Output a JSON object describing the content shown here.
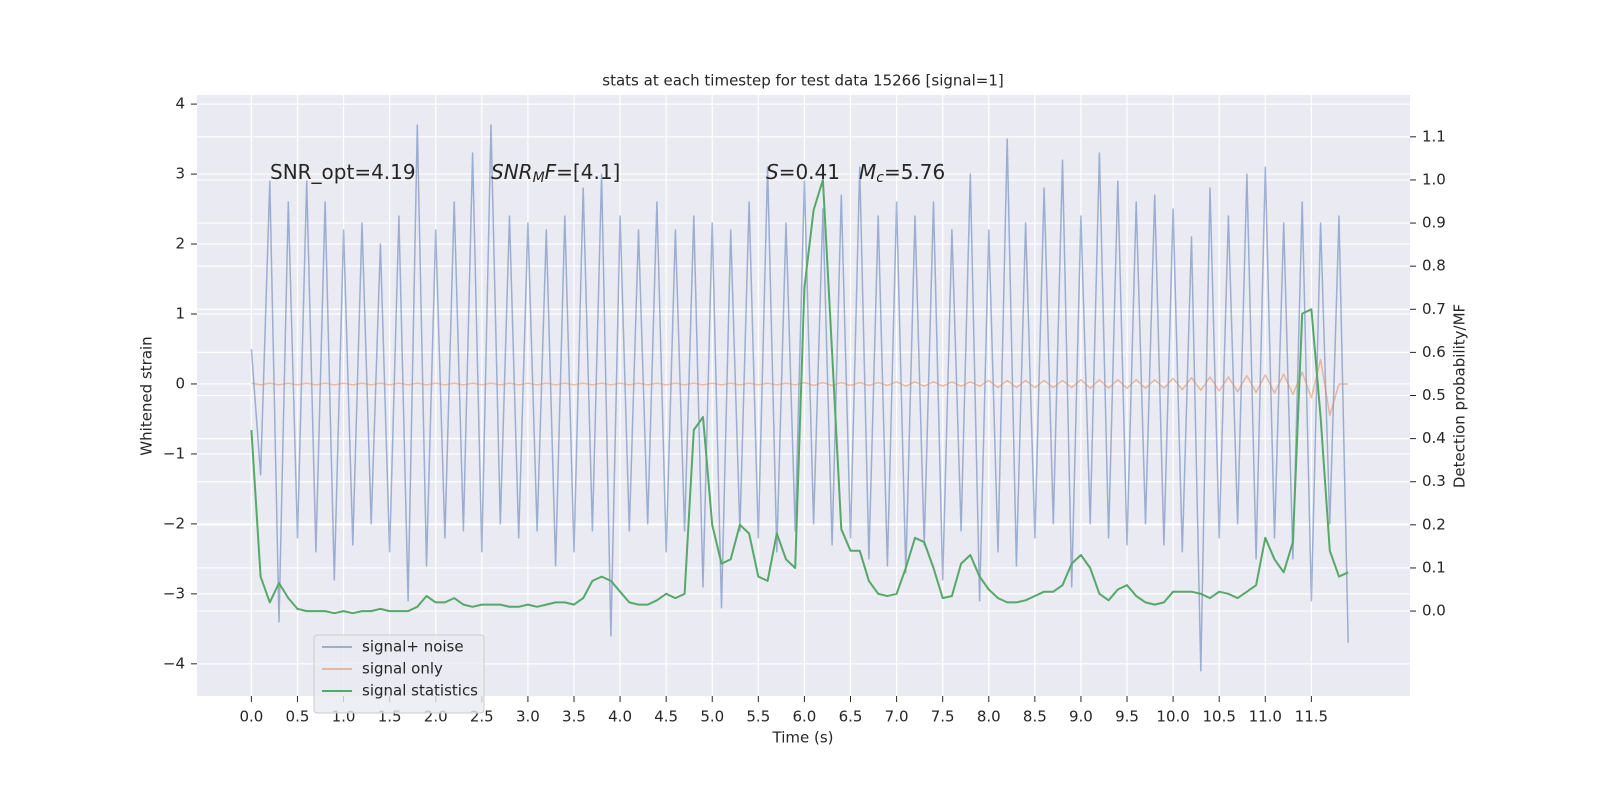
{
  "chart_data": {
    "type": "line",
    "title": "stats at each timestep for test data 15266 [signal=1]",
    "x_label": "Time (s)",
    "y_label": "Whitened strain",
    "y2_label": "Detection probability/MF",
    "x": [
      0.0,
      0.1,
      0.2,
      0.3,
      0.4,
      0.5,
      0.6,
      0.7,
      0.8,
      0.9,
      1.0,
      1.1,
      1.2,
      1.3,
      1.4,
      1.5,
      1.6,
      1.7,
      1.8,
      1.9,
      2.0,
      2.1,
      2.2,
      2.3,
      2.4,
      2.5,
      2.6,
      2.7,
      2.8,
      2.9,
      3.0,
      3.1,
      3.2,
      3.3,
      3.4,
      3.5,
      3.6,
      3.7,
      3.8,
      3.9,
      4.0,
      4.1,
      4.2,
      4.3,
      4.4,
      4.5,
      4.6,
      4.7,
      4.8,
      4.9,
      5.0,
      5.1,
      5.2,
      5.3,
      5.4,
      5.5,
      5.6,
      5.7,
      5.8,
      5.9,
      6.0,
      6.1,
      6.2,
      6.3,
      6.4,
      6.5,
      6.6,
      6.7,
      6.8,
      6.9,
      7.0,
      7.1,
      7.2,
      7.3,
      7.4,
      7.5,
      7.6,
      7.7,
      7.8,
      7.9,
      8.0,
      8.1,
      8.2,
      8.3,
      8.4,
      8.5,
      8.6,
      8.7,
      8.8,
      8.9,
      9.0,
      9.1,
      9.2,
      9.3,
      9.4,
      9.5,
      9.6,
      9.7,
      9.8,
      9.9,
      10.0,
      10.1,
      10.2,
      10.3,
      10.4,
      10.5,
      10.6,
      10.7,
      10.8,
      10.9,
      11.0,
      11.1,
      11.2,
      11.3,
      11.4,
      11.5,
      11.6,
      11.7,
      11.8,
      11.9
    ],
    "series": [
      {
        "name": "signal+ noise",
        "color": "#4c72b0",
        "opacity": 0.5,
        "axis": "y",
        "values": [
          0.5,
          -1.3,
          2.9,
          -3.4,
          2.6,
          -2.2,
          2.9,
          -2.4,
          2.6,
          -2.8,
          2.2,
          -2.3,
          2.3,
          -2.0,
          2.0,
          -2.4,
          2.4,
          -3.1,
          3.7,
          -2.6,
          2.2,
          -2.2,
          2.6,
          -2.1,
          3.3,
          -2.4,
          3.7,
          -2.0,
          2.4,
          -2.2,
          2.3,
          -2.1,
          2.2,
          -2.6,
          2.4,
          -2.4,
          2.8,
          -2.1,
          3.0,
          -3.6,
          2.4,
          -2.1,
          2.2,
          -2.0,
          2.6,
          -2.4,
          2.2,
          -2.1,
          2.4,
          -2.9,
          2.3,
          -3.2,
          2.2,
          -2.1,
          2.6,
          -2.2,
          3.1,
          -2.4,
          2.3,
          -2.1,
          2.9,
          -2.0,
          2.5,
          -2.3,
          2.7,
          -2.2,
          3.1,
          -2.5,
          2.4,
          -2.6,
          2.6,
          -2.7,
          2.4,
          -2.3,
          2.6,
          -2.8,
          2.2,
          -2.1,
          3.0,
          -3.1,
          2.2,
          -2.4,
          3.5,
          -2.6,
          2.3,
          -2.2,
          2.8,
          -2.0,
          3.2,
          -2.9,
          2.4,
          -2.0,
          3.3,
          -2.2,
          2.9,
          -2.3,
          2.6,
          -2.0,
          2.7,
          -2.3,
          2.5,
          -2.4,
          2.1,
          -4.1,
          2.8,
          -2.2,
          2.4,
          -2.0,
          3.0,
          -2.5,
          3.1,
          -2.2,
          2.3,
          -2.5,
          2.6,
          -3.1,
          2.3,
          -2.0,
          2.4,
          -3.7
        ]
      },
      {
        "name": "signal only",
        "color": "#dd8452",
        "opacity": 0.5,
        "axis": "y",
        "values": [
          0.01,
          -0.01,
          0.01,
          -0.01,
          0.01,
          -0.01,
          0.01,
          -0.01,
          0.01,
          -0.01,
          0.01,
          -0.01,
          0.01,
          -0.01,
          0.01,
          -0.01,
          0.01,
          -0.01,
          0.01,
          -0.01,
          0.01,
          -0.01,
          0.01,
          -0.01,
          0.01,
          -0.01,
          0.01,
          -0.01,
          0.01,
          -0.01,
          0.01,
          -0.01,
          0.01,
          -0.01,
          0.01,
          -0.01,
          0.01,
          -0.01,
          0.01,
          -0.01,
          0.01,
          -0.01,
          0.01,
          -0.01,
          0.01,
          -0.01,
          0.01,
          -0.01,
          0.01,
          -0.01,
          0.01,
          -0.01,
          0.01,
          -0.01,
          0.01,
          -0.01,
          0.01,
          -0.01,
          0.01,
          -0.01,
          0.02,
          -0.02,
          0.02,
          -0.02,
          0.02,
          -0.02,
          0.02,
          -0.02,
          0.02,
          -0.02,
          0.03,
          -0.03,
          0.03,
          -0.03,
          0.03,
          -0.03,
          0.03,
          -0.03,
          0.03,
          -0.03,
          0.05,
          -0.05,
          0.05,
          -0.05,
          0.05,
          -0.05,
          0.05,
          -0.05,
          0.05,
          -0.05,
          0.06,
          -0.06,
          0.06,
          -0.06,
          0.06,
          -0.06,
          0.06,
          -0.06,
          0.06,
          -0.06,
          0.08,
          -0.08,
          0.09,
          -0.09,
          0.1,
          -0.1,
          0.1,
          -0.11,
          0.12,
          -0.12,
          0.13,
          -0.13,
          0.14,
          -0.15,
          0.17,
          -0.2,
          0.35,
          -0.45,
          0.0,
          0.0
        ]
      },
      {
        "name": "signal statistics",
        "color": "#55a868",
        "opacity": 1,
        "axis": "y2",
        "values": [
          0.42,
          0.08,
          0.02,
          0.065,
          0.03,
          0.005,
          0.0,
          0.0,
          0.0,
          -0.005,
          0.0,
          -0.005,
          0.0,
          0.0,
          0.005,
          0.0,
          0.0,
          0.0,
          0.01,
          0.035,
          0.02,
          0.02,
          0.03,
          0.015,
          0.01,
          0.015,
          0.015,
          0.015,
          0.01,
          0.01,
          0.015,
          0.01,
          0.015,
          0.02,
          0.02,
          0.015,
          0.03,
          0.07,
          0.08,
          0.07,
          0.045,
          0.02,
          0.015,
          0.015,
          0.025,
          0.04,
          0.03,
          0.04,
          0.42,
          0.45,
          0.2,
          0.11,
          0.12,
          0.2,
          0.18,
          0.08,
          0.07,
          0.18,
          0.12,
          0.1,
          0.75,
          0.93,
          1.0,
          0.6,
          0.19,
          0.14,
          0.14,
          0.07,
          0.04,
          0.035,
          0.04,
          0.1,
          0.17,
          0.16,
          0.1,
          0.03,
          0.035,
          0.11,
          0.13,
          0.08,
          0.05,
          0.03,
          0.02,
          0.02,
          0.025,
          0.035,
          0.045,
          0.045,
          0.06,
          0.11,
          0.13,
          0.1,
          0.04,
          0.025,
          0.05,
          0.06,
          0.035,
          0.02,
          0.015,
          0.02,
          0.045,
          0.045,
          0.045,
          0.04,
          0.03,
          0.045,
          0.04,
          0.03,
          0.045,
          0.06,
          0.17,
          0.12,
          0.09,
          0.16,
          0.69,
          0.7,
          0.45,
          0.14,
          0.08,
          0.09
        ]
      }
    ],
    "xlim": [
      -0.59,
      12.57
    ],
    "ylim": [
      -4.46,
      4.13
    ],
    "y2lim": [
      -0.197,
      1.197
    ],
    "xticks": [
      {
        "value": 0,
        "label": "0.0"
      },
      0.5,
      {
        "value": 1,
        "label": "1.0"
      },
      1.5,
      {
        "value": 2,
        "label": "2.0"
      },
      2.5,
      {
        "value": 3,
        "label": "3.0"
      },
      3.5,
      {
        "value": 4,
        "label": "4.0"
      },
      4.5,
      {
        "value": 5,
        "label": "5.0"
      },
      5.5,
      {
        "value": 6,
        "label": "6.0"
      },
      6.5,
      {
        "value": 7,
        "label": "7.0"
      },
      7.5,
      {
        "value": 8,
        "label": "8.0"
      },
      8.5,
      {
        "value": 9,
        "label": "9.0"
      },
      9.5,
      {
        "value": 10,
        "label": "10.0"
      },
      10.5,
      {
        "value": 11,
        "label": "11.0"
      },
      11.5
    ],
    "yticks": [
      {
        "value": -4,
        "label": "−4"
      },
      {
        "value": -3,
        "label": "−3"
      },
      {
        "value": -2,
        "label": "−2"
      },
      {
        "value": -1,
        "label": "−1"
      },
      0,
      1,
      2,
      3,
      4
    ],
    "y2ticks": [
      {
        "value": 0,
        "label": "0.0"
      },
      0.1,
      0.2,
      0.3,
      0.4,
      0.5,
      0.6,
      0.7,
      0.8,
      0.9,
      {
        "value": 1,
        "label": "1.0"
      },
      1.1
    ],
    "grid": true,
    "legend": "lower left",
    "annotations": [
      [
        {
          "t": "SNR_opt=4.19"
        }
      ],
      [
        {
          "t": "SNR",
          "italic": true
        },
        {
          "t": "M",
          "italic": true,
          "sub": true
        },
        {
          "t": "F",
          "italic": true
        },
        {
          "t": "=[4.1]"
        }
      ],
      [
        {
          "t": "S",
          "italic": true
        },
        {
          "t": "=0.41"
        }
      ],
      [
        {
          "t": "M",
          "italic": true
        },
        {
          "t": "c",
          "italic": true,
          "sub": true
        },
        {
          "t": "=5.76"
        }
      ]
    ]
  }
}
